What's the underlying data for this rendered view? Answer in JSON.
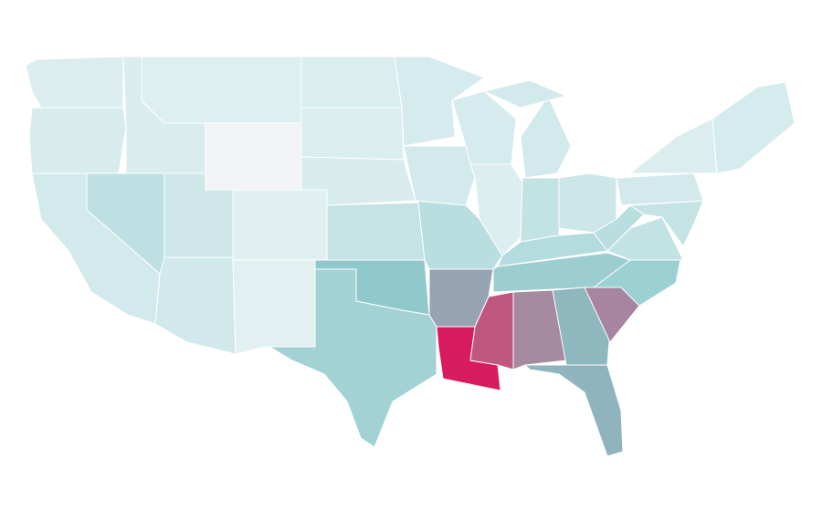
{
  "map": {
    "regions": [
      {
        "color": "#dcedef"
      },
      {
        "color": "#d8ecee"
      },
      {
        "color": "#d3eaec"
      },
      {
        "color": "#d9edef"
      },
      {
        "color": "#bfe0e2"
      },
      {
        "color": "#deeff1"
      },
      {
        "color": "#f2f3f5"
      },
      {
        "color": "#cfe7e9"
      },
      {
        "color": "#d2e9eb"
      },
      {
        "color": "#e0f0f1"
      },
      {
        "color": "#e1f0f1"
      },
      {
        "color": "#daedef"
      },
      {
        "color": "#daedef"
      },
      {
        "color": "#d8ecee"
      },
      {
        "color": "#c5e3e5"
      },
      {
        "color": "#8fc9cc"
      },
      {
        "color": "#a3d2d5"
      },
      {
        "color": "#d5ebed"
      },
      {
        "color": "#d3eaec"
      },
      {
        "color": "#b9dee0"
      },
      {
        "color": "#96a3b2"
      },
      {
        "color": "#d81b5e"
      },
      {
        "color": "#d6ebed"
      },
      {
        "color": "#dbeef0"
      },
      {
        "color": "#d3eaec"
      },
      {
        "color": "#d3eaec"
      },
      {
        "color": "#c2e2e4"
      },
      {
        "color": "#cde7e9"
      },
      {
        "color": "#b4dcde"
      },
      {
        "color": "#9bcdd1"
      },
      {
        "color": "#c0577f"
      },
      {
        "color": "#a68aa0"
      },
      {
        "color": "#8eb7be"
      },
      {
        "color": "#8fb4bd"
      },
      {
        "color": "#a7849f"
      },
      {
        "color": "#9bd1d3"
      },
      {
        "color": "#c2e2e4"
      },
      {
        "color": "#b9dee0"
      },
      {
        "color": "#d3e9ec"
      },
      {
        "color": "#dcedef"
      },
      {
        "color": "#d5ecee"
      },
      {
        "color": "#c4e3e5"
      }
    ]
  }
}
